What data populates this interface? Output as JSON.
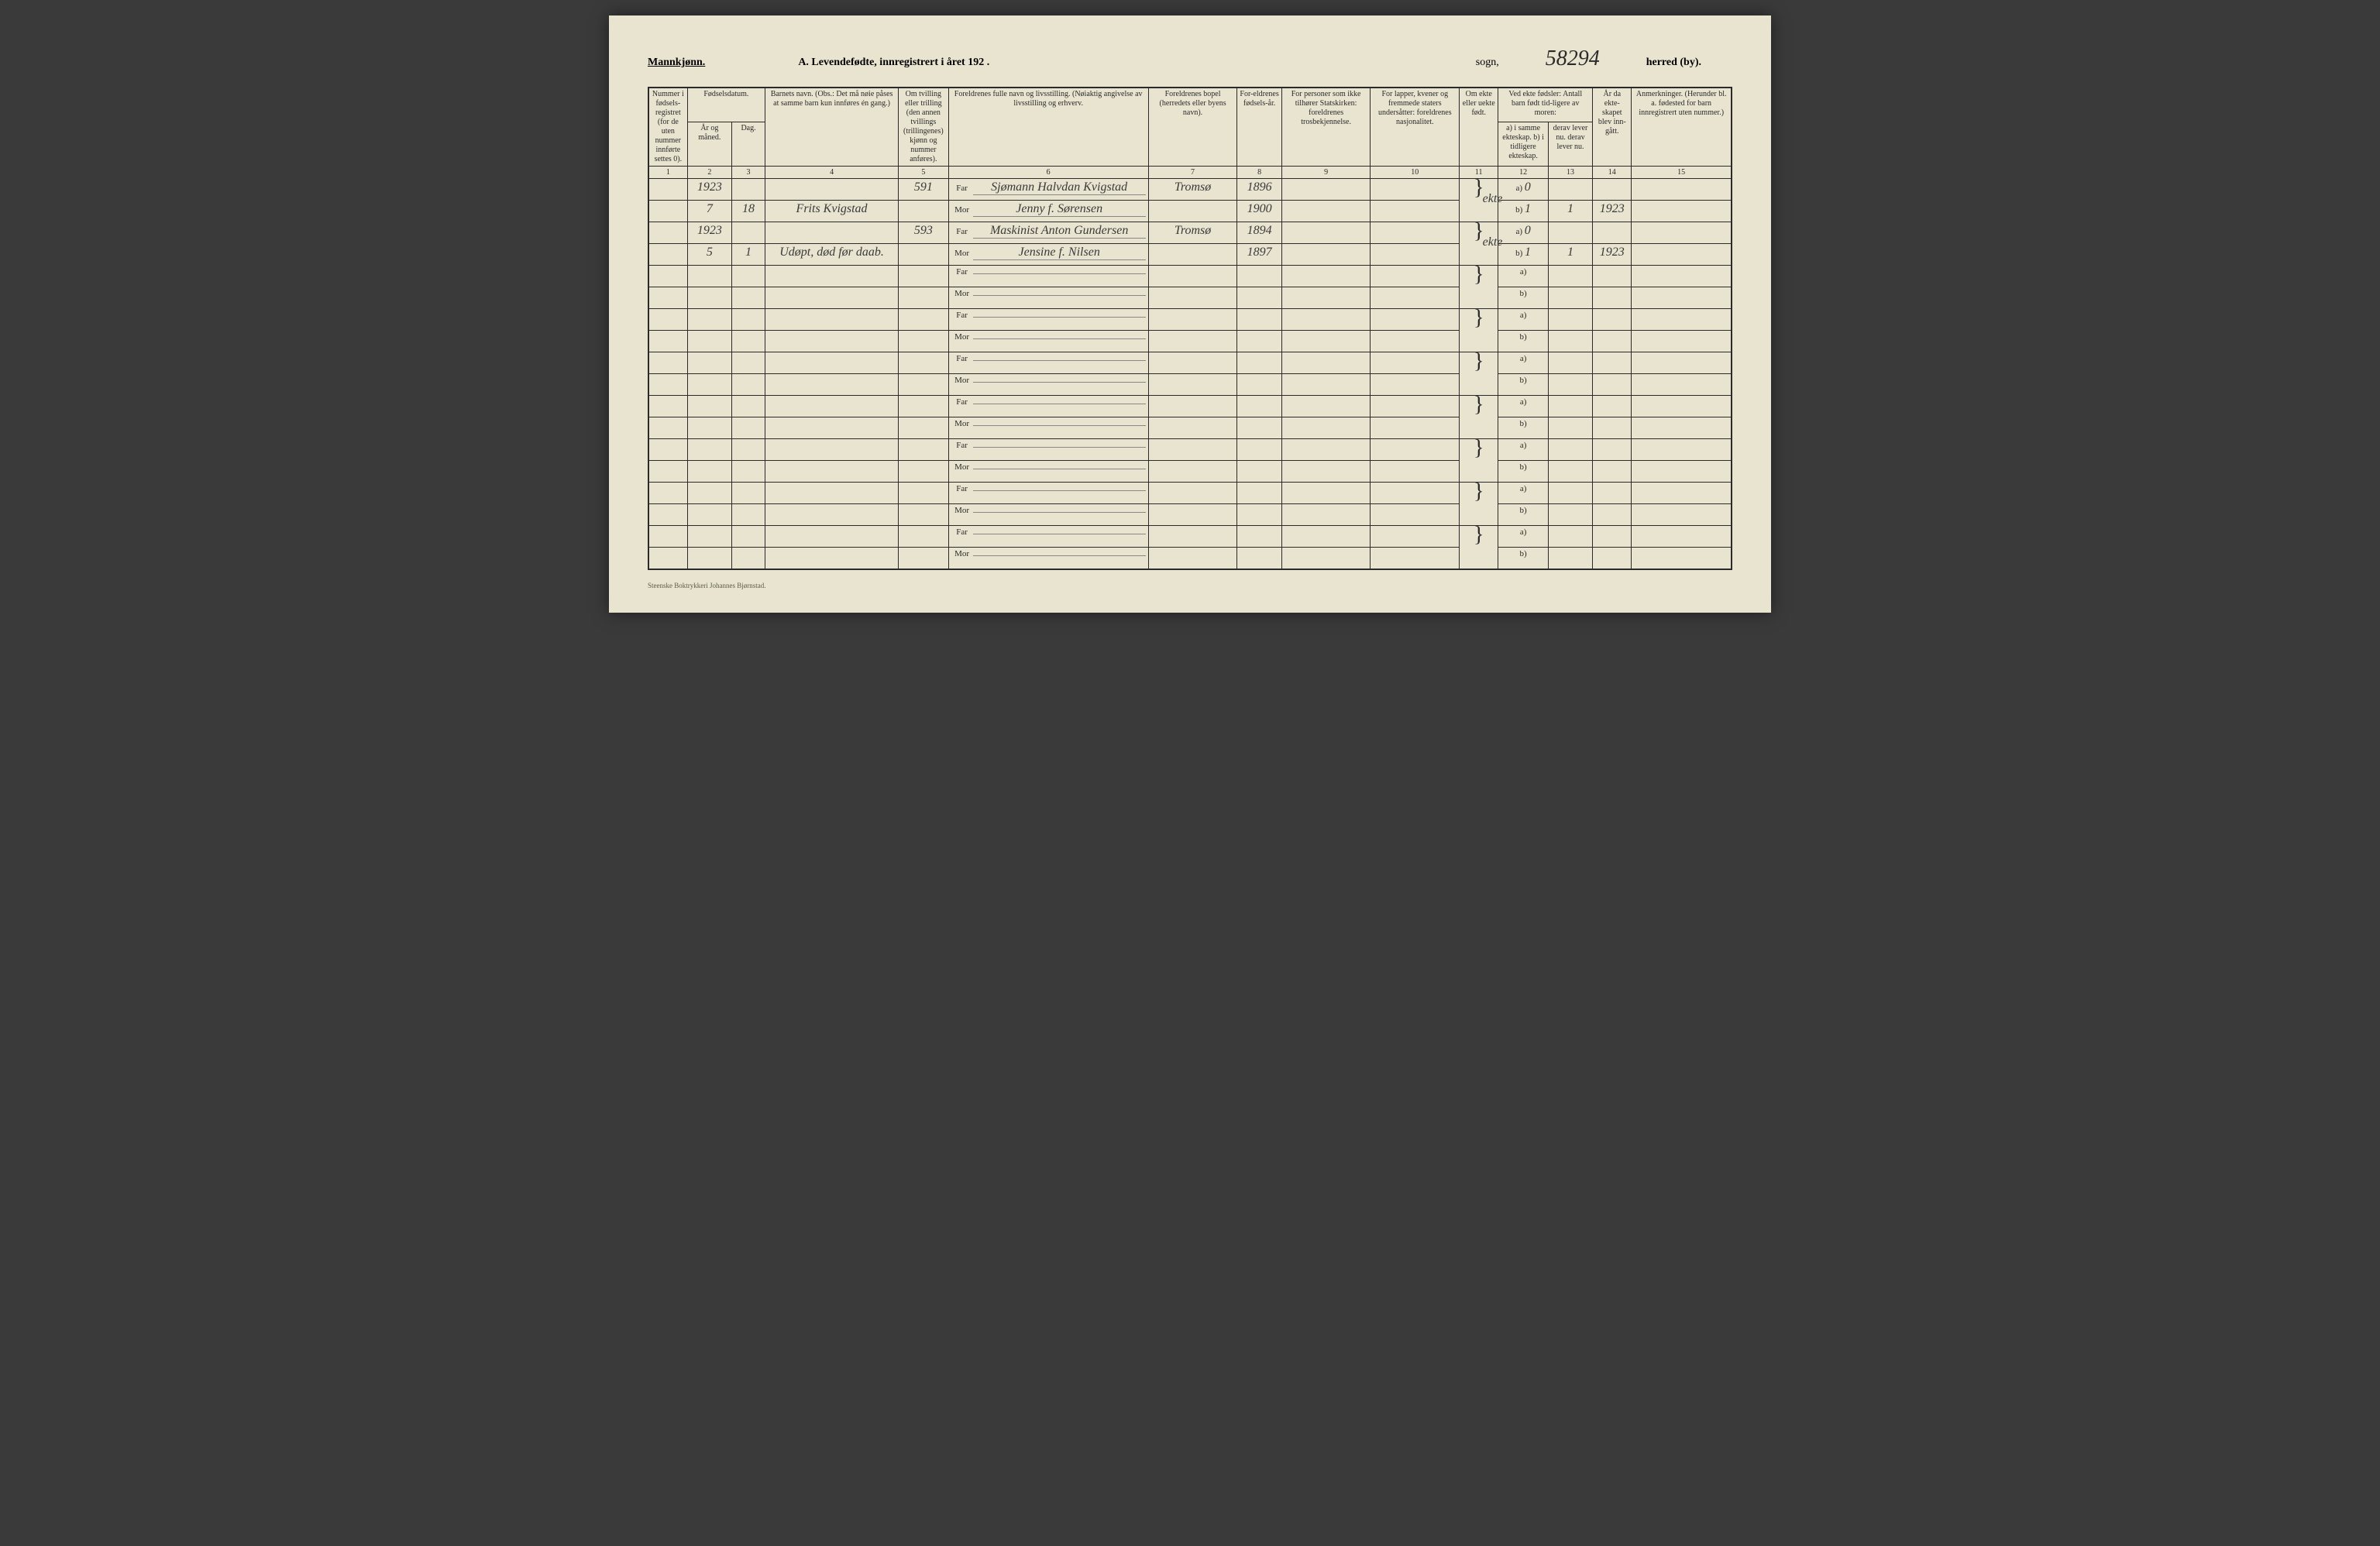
{
  "header": {
    "gender": "Mannkjønn.",
    "title": "A.  Levendefødte, innregistrert i året 192  .",
    "sogn": "sogn,",
    "page_number_hw": "58294",
    "herred": "herred (by)."
  },
  "columns": {
    "c1": "Nummer i fødsels-registret (for de uten nummer innførte settes 0).",
    "c2_group": "Fødselsdatum.",
    "c2": "År og måned.",
    "c3": "Dag.",
    "c4": "Barnets navn. (Obs.: Det må nøie påses at samme barn kun innføres én gang.)",
    "c5": "Om tvilling eller trilling (den annen tvillings (trillingenes) kjønn og nummer anføres).",
    "c6": "Foreldrenes fulle navn og livsstilling. (Nøiaktig angivelse av livsstilling og erhverv.",
    "c7": "Foreldrenes bopel (herredets eller byens navn).",
    "c8": "For-eldrenes fødsels-år.",
    "c9": "For personer som ikke tilhører Statskirken: foreldrenes trosbekjennelse.",
    "c10": "For lapper, kvener og fremmede staters undersåtter: foreldrenes nasjonalitet.",
    "c11": "Om ekte eller uekte født.",
    "c12_group": "Ved ekte fødsler: Antall barn født tid-ligere av moren:",
    "c12": "a) i samme ekteskap. b) i tidligere ekteskap.",
    "c13": "derav lever nu. derav lever nu.",
    "c14": "År da ekte-skapet blev inn-gått.",
    "c15": "Anmerkninger. (Herunder bl. a. fødested for barn innregistrert uten nummer.)"
  },
  "col_numbers": [
    "1",
    "2",
    "3",
    "4",
    "5",
    "6",
    "7",
    "8",
    "9",
    "10",
    "11",
    "12",
    "13",
    "14",
    "15"
  ],
  "far_label": "Far",
  "mor_label": "Mor",
  "ab_a": "a)",
  "ab_b": "b)",
  "entries": [
    {
      "year_month": "1923",
      "year_month2": "7",
      "day": "18",
      "child_name": "Frits Kvigstad",
      "seq": "591",
      "far": "Sjømann Halvdan Kvigstad",
      "mor": "Jenny f. Sørensen",
      "bopel": "Tromsø",
      "far_year": "1896",
      "mor_year": "1900",
      "ekte": "ekte",
      "a_val": "0",
      "b_val": "1",
      "lever_b": "1",
      "marriage_year": "1923"
    },
    {
      "year_month": "1923",
      "year_month2": "5",
      "day": "1",
      "child_name": "Udøpt, død før daab.",
      "seq": "593",
      "far": "Maskinist Anton Gundersen",
      "mor": "Jensine f. Nilsen",
      "bopel": "Tromsø",
      "far_year": "1894",
      "mor_year": "1897",
      "ekte": "ekte",
      "a_val": "0",
      "b_val": "1",
      "lever_b": "1",
      "marriage_year": "1923"
    }
  ],
  "empty_rows": 7,
  "footer": "Steenske Boktrykkeri Johannes Bjørnstad.",
  "style": {
    "page_bg": "#e8e4d0",
    "ink": "#2a2a2a",
    "hand_ink": "#3a3a3a",
    "border_weight_outer": 2,
    "border_weight_inner": 1,
    "header_fontsize_pt": 14,
    "body_fontsize_pt": 10,
    "handwriting_fontsize_pt": 16,
    "font_family_print": "Times New Roman",
    "font_family_hand": "Brush Script MT"
  }
}
